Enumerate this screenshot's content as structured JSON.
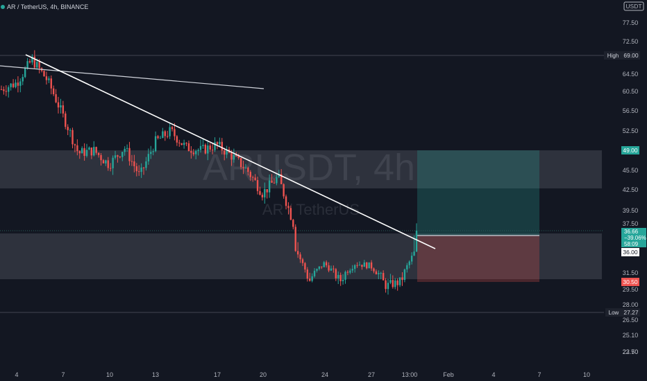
{
  "header": {
    "title": "AR / TetherUS, 4h, BINANCE"
  },
  "watermark": {
    "symbol": "ARUSDT, 4h",
    "name": "AR / TetherUS"
  },
  "price_axis": {
    "currency_badge": "USDT",
    "ticks": [
      "77.50",
      "72.50",
      "64.50",
      "60.50",
      "56.50",
      "52.50",
      "45.50",
      "42.50",
      "39.50",
      "37.50",
      "31.50",
      "29.50",
      "28.00",
      "26.50",
      "25.10",
      "23.70",
      "22.50"
    ],
    "high_label": "High",
    "high_value": "69.00",
    "low_label": "Low",
    "low_value": "27.27",
    "target_value": "49.00",
    "stop_value": "30.50",
    "last_price": "36.66",
    "last_change": "−39.06%",
    "countdown": "58:09",
    "entry_value": "36.00"
  },
  "time_axis": {
    "ticks": [
      "4",
      "7",
      "10",
      "13",
      "17",
      "20",
      "24",
      "27",
      "13:00",
      "Feb",
      "4",
      "7",
      "10"
    ]
  },
  "colors": {
    "background": "#131722",
    "up": "#26a69a",
    "down": "#ef5350",
    "zone": "#787b86",
    "target": "#26a69a",
    "stop": "#ef5350"
  },
  "chart_data": {
    "type": "candlestick",
    "title": "AR / TetherUS, 4h, BINANCE",
    "x_ticks": [
      "4",
      "7",
      "10",
      "13",
      "17",
      "20",
      "24",
      "27",
      "13:00",
      "Feb",
      "4",
      "7",
      "10"
    ],
    "y_ticks": [
      77.5,
      72.5,
      64.5,
      60.5,
      56.5,
      52.5,
      45.5,
      42.5,
      39.5,
      37.5,
      31.5,
      29.5,
      28.0,
      26.5,
      25.1,
      23.7,
      22.5
    ],
    "y_scale": "log",
    "grid": false,
    "high": 69.0,
    "low": 27.27,
    "last_price": 36.66,
    "change_percent": -39.06,
    "trendlines": [
      {
        "from": {
          "x": "Jan 2",
          "y": 67.5
        },
        "to": {
          "x": "Jan 20",
          "y": 60.5
        }
      },
      {
        "from": {
          "x": "Jan 4",
          "y": 69.0
        },
        "to": {
          "x": "Jan 29",
          "y": 35.0
        }
      }
    ],
    "zones": [
      {
        "y_from": 43.0,
        "y_to": 49.0
      },
      {
        "y_from": 31.0,
        "y_to": 37.0
      }
    ],
    "position": {
      "entry": 36.0,
      "target": 49.0,
      "stop": 30.5
    },
    "ohlc_anchors": [
      {
        "x": "Jan 2",
        "close": 61.0
      },
      {
        "x": "Jan 3",
        "close": 62.5
      },
      {
        "x": "Jan 4",
        "close": 68.0
      },
      {
        "x": "Jan 5",
        "close": 63.0
      },
      {
        "x": "Jan 6",
        "close": 55.5
      },
      {
        "x": "Jan 7",
        "close": 48.5
      },
      {
        "x": "Jan 8",
        "close": 49.0
      },
      {
        "x": "Jan 9",
        "close": 46.5
      },
      {
        "x": "Jan 10",
        "close": 49.5
      },
      {
        "x": "Jan 11",
        "close": 44.5
      },
      {
        "x": "Jan 12",
        "close": 50.5
      },
      {
        "x": "Jan 13",
        "close": 52.5
      },
      {
        "x": "Jan 14",
        "close": 49.5
      },
      {
        "x": "Jan 15",
        "close": 49.0
      },
      {
        "x": "Jan 16",
        "close": 50.0
      },
      {
        "x": "Jan 17",
        "close": 48.0
      },
      {
        "x": "Jan 18",
        "close": 45.5
      },
      {
        "x": "Jan 19",
        "close": 42.0
      },
      {
        "x": "Jan 20",
        "close": 44.5
      },
      {
        "x": "Jan 21",
        "close": 37.5
      },
      {
        "x": "Jan 22",
        "close": 30.5
      },
      {
        "x": "Jan 23",
        "close": 33.5
      },
      {
        "x": "Jan 24",
        "close": 30.5
      },
      {
        "x": "Jan 25",
        "close": 33.5
      },
      {
        "x": "Jan 26",
        "close": 33.0
      },
      {
        "x": "Jan 27",
        "close": 30.0
      },
      {
        "x": "Jan 28",
        "close": 30.5
      },
      {
        "x": "Jan 29",
        "close": 36.66
      }
    ]
  }
}
